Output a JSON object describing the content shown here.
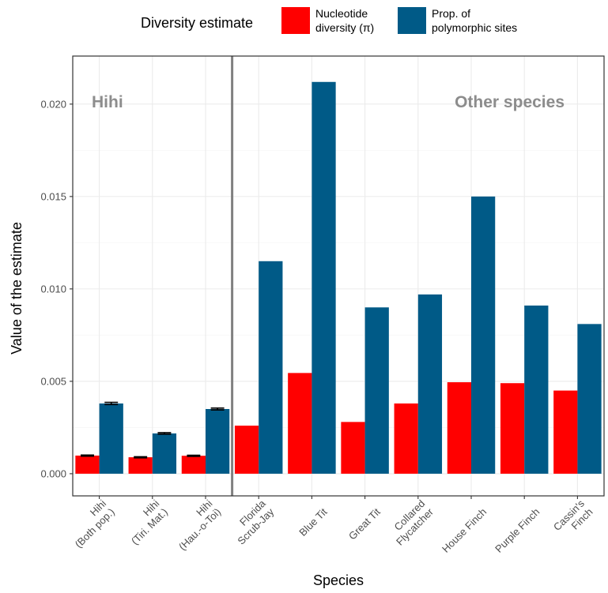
{
  "chart_data": {
    "type": "bar",
    "xlabel": "Species",
    "ylabel": "Value of the estimate",
    "ylim": [
      -0.0012,
      0.0226
    ],
    "yticks": [
      "0.000",
      "0.005",
      "0.010",
      "0.015",
      "0.020"
    ],
    "ytick_values": [
      0,
      0.005,
      0.01,
      0.015,
      0.02
    ],
    "grid": true,
    "legend": {
      "title": "Diversity estimate",
      "position": "top",
      "entries": [
        {
          "lines": [
            "Nucleotide",
            "diversity (π)"
          ],
          "color": "#ff0000"
        },
        {
          "lines": [
            "Prop. of",
            "polymorphic sites"
          ],
          "color": "#005a87"
        }
      ]
    },
    "categories": [
      [
        "Hihi",
        "(Both pop.)"
      ],
      [
        "Hihi",
        "(Tiri. Mat.)"
      ],
      [
        "Hihi",
        "(Hau.-o-Toi)"
      ],
      [
        "Florida",
        "Scrub-Jay"
      ],
      [
        "Blue Tit"
      ],
      [
        "Great Tit"
      ],
      [
        "Collared",
        "Flycatcher"
      ],
      [
        "House Finch"
      ],
      [
        "Purple Finch"
      ],
      [
        "Cassin's",
        "Finch"
      ]
    ],
    "series": [
      {
        "color": "#ff0000",
        "values": [
          0.00098,
          0.00089,
          0.00097,
          0.0026,
          0.00545,
          0.0028,
          0.0038,
          0.00495,
          0.0049,
          0.0045
        ],
        "errors": [
          3e-05,
          3e-05,
          3e-05,
          null,
          null,
          null,
          null,
          null,
          null,
          null
        ]
      },
      {
        "color": "#005a87",
        "values": [
          0.0038,
          0.00218,
          0.0035,
          0.0115,
          0.0212,
          0.009,
          0.0097,
          0.015,
          0.0091,
          0.0081
        ],
        "errors": [
          6e-05,
          4e-05,
          5e-05,
          null,
          null,
          null,
          null,
          null,
          null,
          null
        ]
      }
    ],
    "annotations": [
      {
        "text": "Hihi",
        "side": "left"
      },
      {
        "text": "Other species",
        "side": "right"
      }
    ],
    "divider_after_category": 2
  }
}
